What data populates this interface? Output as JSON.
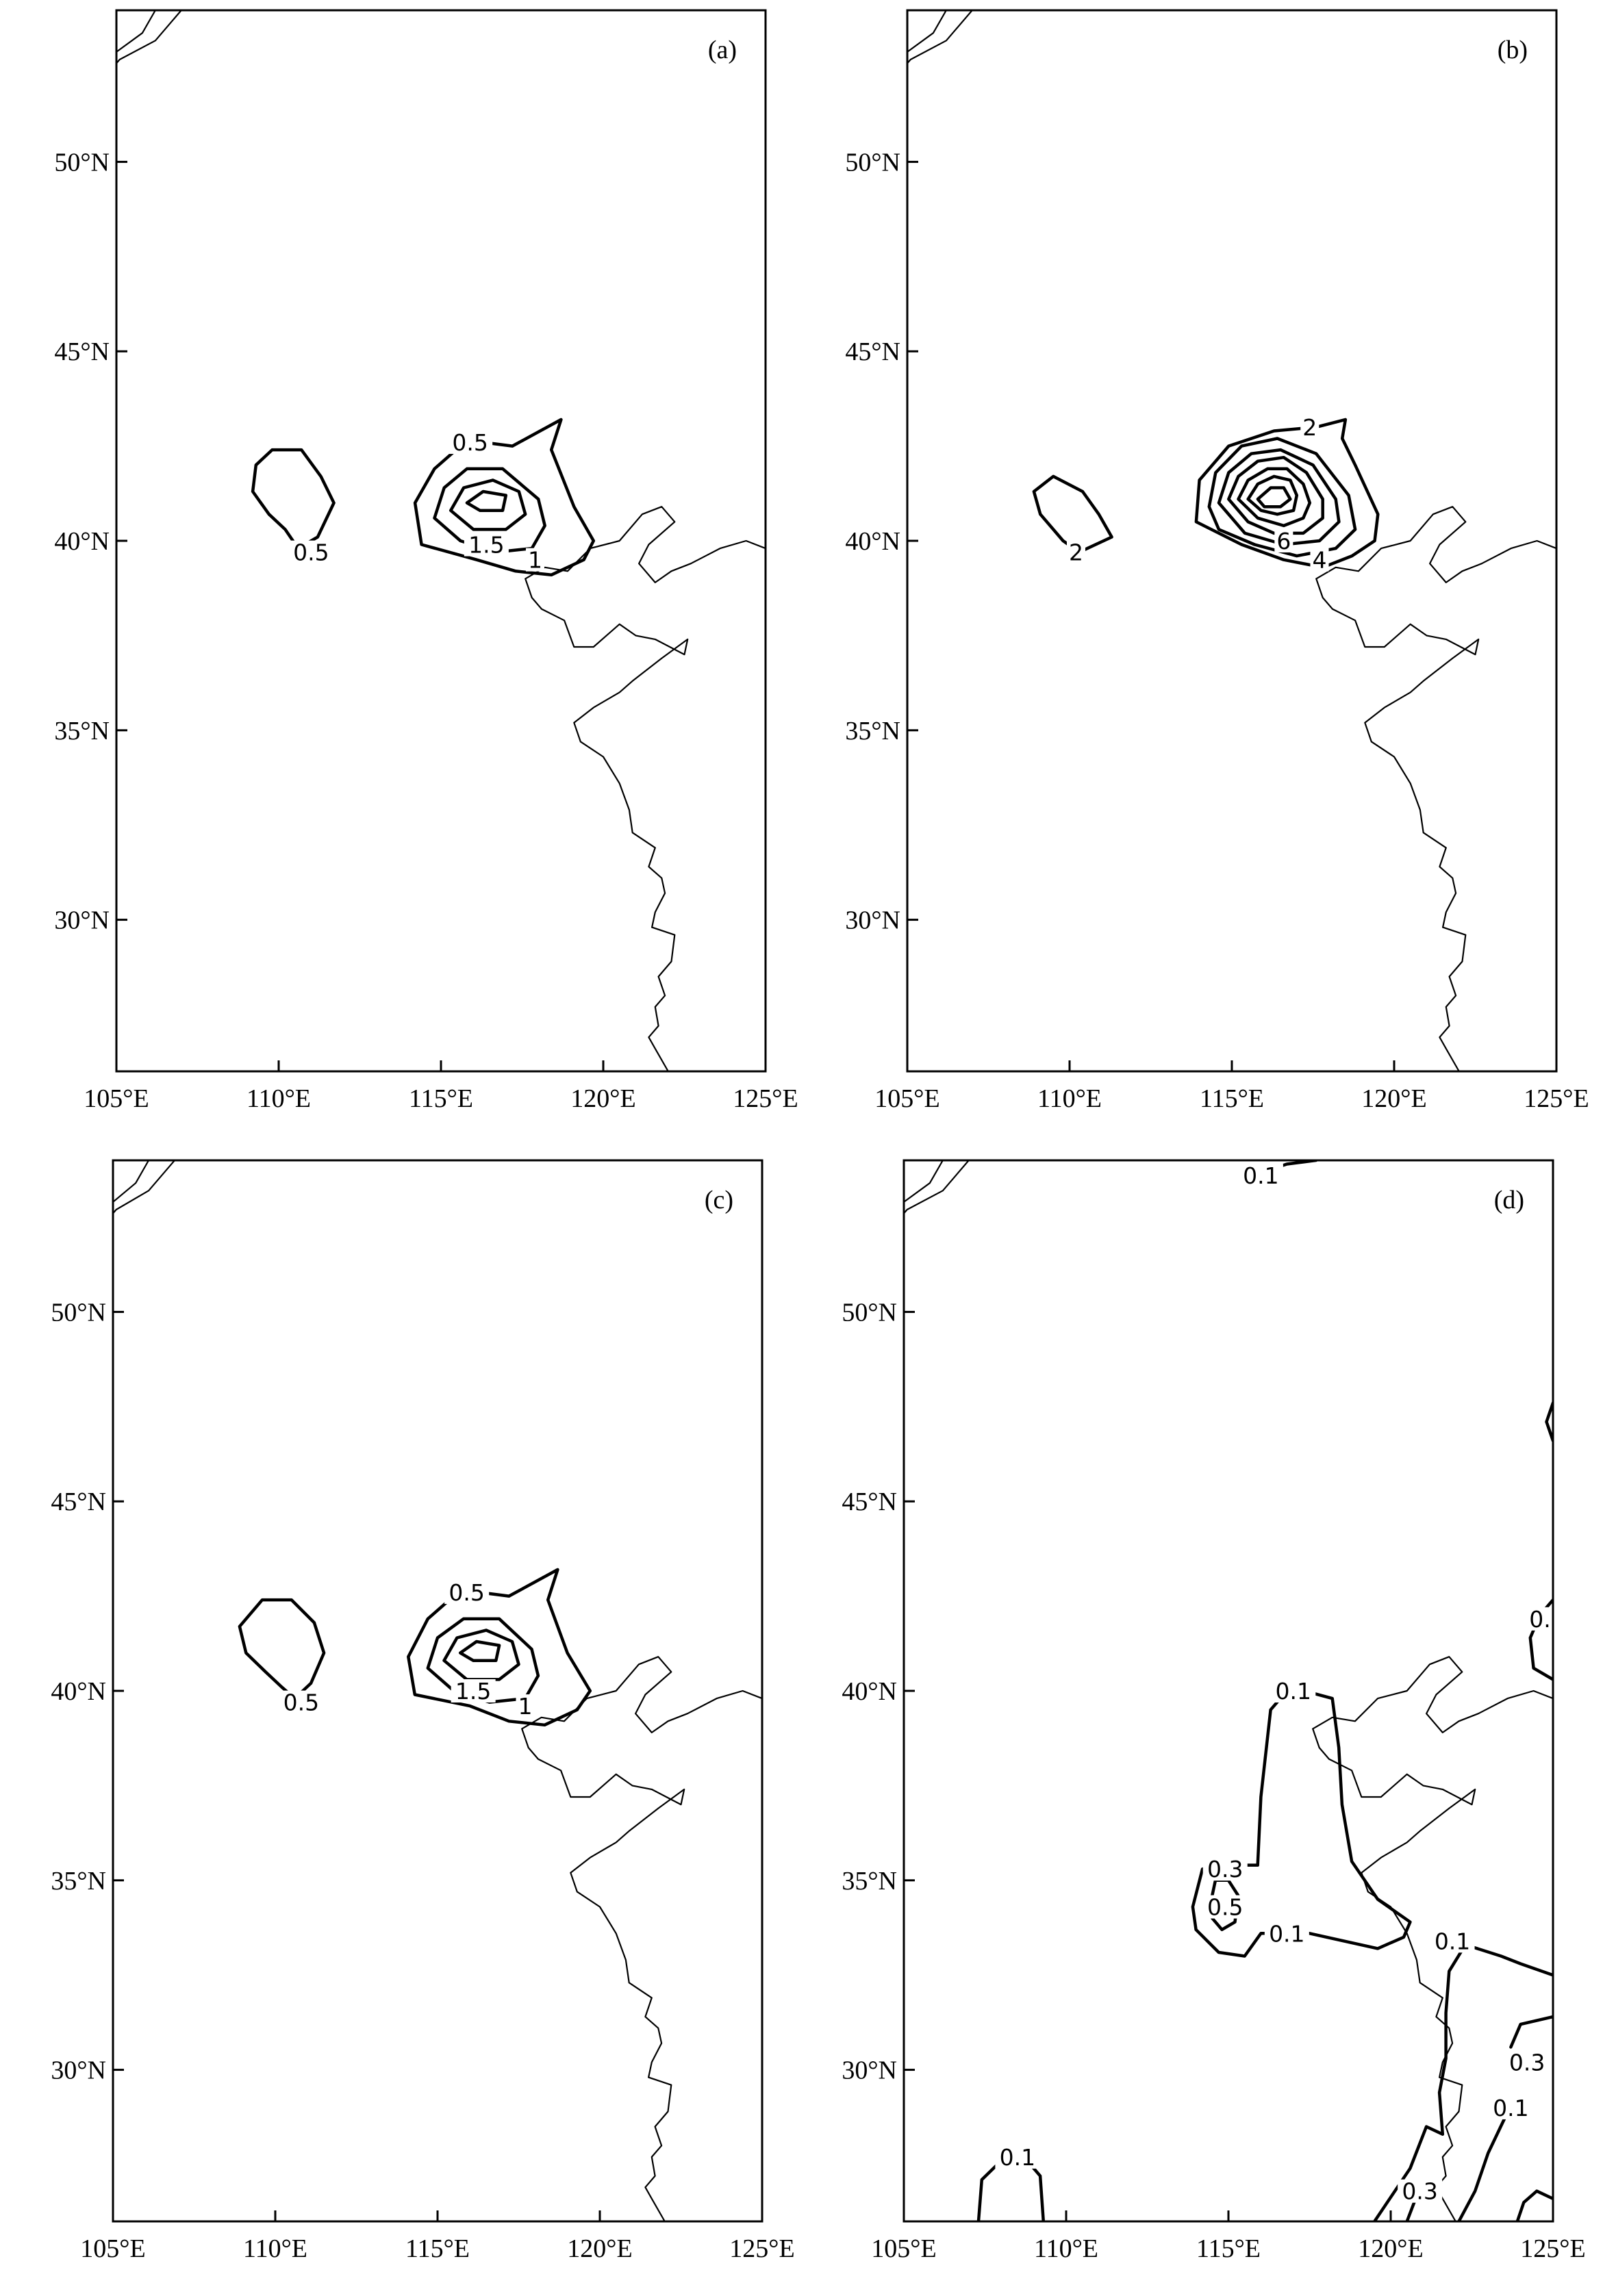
{
  "figure": {
    "lon_ticks": [
      "105°E",
      "110°E",
      "115°E",
      "120°E",
      "125°E"
    ],
    "lat_ticks": [
      "50°N",
      "45°N",
      "40°N",
      "35°N",
      "30°N"
    ],
    "lon_range": [
      105,
      125
    ],
    "lat_range": [
      26,
      54
    ],
    "panels": [
      {
        "id": "a",
        "label": "(a)",
        "contour_labels": [
          {
            "text": "0.5",
            "lon": 111.0,
            "lat": 39.7
          },
          {
            "text": "0.5",
            "lon": 115.9,
            "lat": 42.6
          },
          {
            "text": "1.5",
            "lon": 116.4,
            "lat": 39.9
          },
          {
            "text": "1",
            "lon": 117.9,
            "lat": 39.5
          }
        ]
      },
      {
        "id": "b",
        "label": "(b)",
        "contour_labels": [
          {
            "text": "2",
            "lon": 110.2,
            "lat": 39.7
          },
          {
            "text": "2",
            "lon": 117.4,
            "lat": 43.0
          },
          {
            "text": "6",
            "lon": 116.6,
            "lat": 40.0
          },
          {
            "text": "4",
            "lon": 117.7,
            "lat": 39.5
          }
        ]
      },
      {
        "id": "c",
        "label": "(c)",
        "contour_labels": [
          {
            "text": "0.5",
            "lon": 110.8,
            "lat": 39.7
          },
          {
            "text": "0.5",
            "lon": 115.9,
            "lat": 42.6
          },
          {
            "text": "1.5",
            "lon": 116.1,
            "lat": 40.0
          },
          {
            "text": "1",
            "lon": 117.7,
            "lat": 39.6
          }
        ]
      },
      {
        "id": "d",
        "label": "(d)",
        "contour_labels": [
          {
            "text": "0.1",
            "lon": 116.0,
            "lat": 53.6
          },
          {
            "text": "0.1",
            "lon": 117.0,
            "lat": 40.0
          },
          {
            "text": "0.3",
            "lon": 114.9,
            "lat": 35.3
          },
          {
            "text": "0.5",
            "lon": 114.9,
            "lat": 34.3
          },
          {
            "text": "0.1",
            "lon": 116.8,
            "lat": 33.6
          },
          {
            "text": "0.1",
            "lon": 121.9,
            "lat": 33.4
          },
          {
            "text": "0.1",
            "lon": 108.5,
            "lat": 27.7
          },
          {
            "text": "0.3",
            "lon": 120.9,
            "lat": 26.8
          },
          {
            "text": "0.1",
            "lon": 123.7,
            "lat": 29.0
          },
          {
            "text": "0.3",
            "lon": 124.2,
            "lat": 30.2
          },
          {
            "text": "0.",
            "lon": 124.6,
            "lat": 41.9
          }
        ]
      }
    ]
  }
}
